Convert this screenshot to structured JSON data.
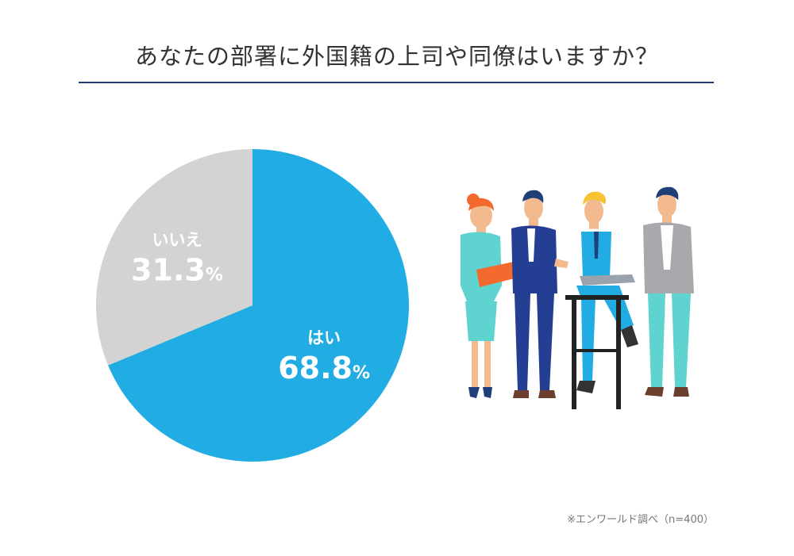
{
  "title": "あなたの部署に外国籍の上司や同僚はいますか？",
  "footnote": "※エンワールド調べ（n=400）",
  "colors": {
    "yes": "#22ace4",
    "no": "#d3d3d3",
    "rule": "#1f3f78"
  },
  "chart_data": {
    "type": "pie",
    "title": "あなたの部署に外国籍の上司や同僚はいますか？",
    "slices": [
      {
        "label": "はい",
        "value": 68.8,
        "display": "68.8",
        "unit": "%",
        "color": "#22ace4"
      },
      {
        "label": "いいえ",
        "value": 31.3,
        "display": "31.3",
        "unit": "%",
        "color": "#d3d3d3"
      }
    ],
    "start": "12 o'clock",
    "direction": "clockwise"
  }
}
